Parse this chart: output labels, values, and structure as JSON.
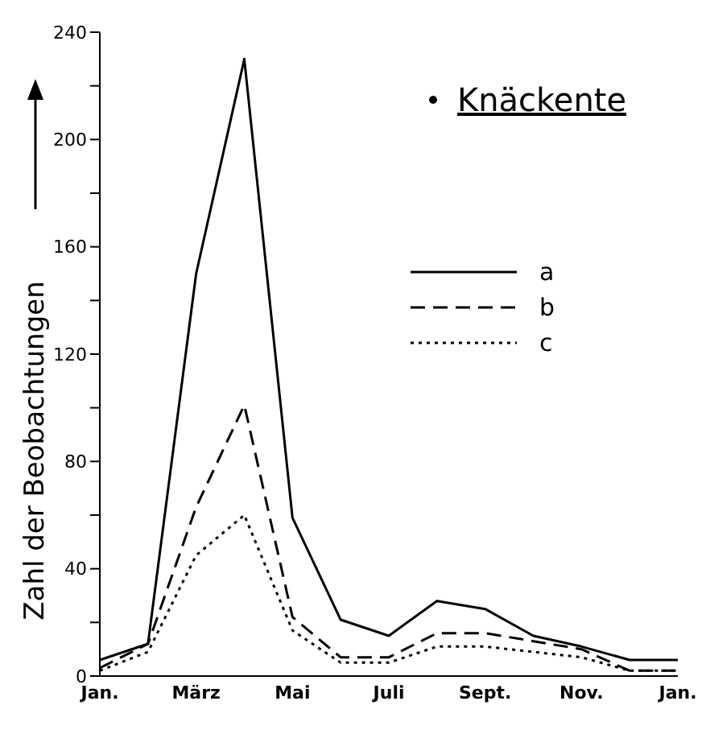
{
  "chart_data": {
    "type": "line",
    "title": "Knäckente",
    "ylabel": "Zahl der Beobachtungen",
    "categories": [
      "Jan.",
      null,
      "März",
      null,
      "Mai",
      null,
      "Juli",
      null,
      "Sept.",
      null,
      "Nov.",
      null,
      "Jan."
    ],
    "series": [
      {
        "name": "a",
        "color": "#000000",
        "line_style": "solid",
        "values": [
          6,
          12,
          150,
          230,
          59,
          21,
          15,
          28,
          25,
          15,
          11,
          6,
          6
        ]
      },
      {
        "name": "b",
        "color": "#000000",
        "line_style": "dashed",
        "values": [
          3,
          12,
          63,
          101,
          22,
          7,
          7,
          16,
          16,
          13,
          10,
          2,
          2
        ]
      },
      {
        "name": "c",
        "color": "#000000",
        "line_style": "dotted",
        "values": [
          2,
          9,
          45,
          60,
          17,
          5,
          5,
          11,
          11,
          9,
          7,
          2,
          2
        ]
      }
    ],
    "ylim": [
      0,
      240
    ],
    "yticks": [
      0,
      {
        "value": 20,
        "label": null
      },
      40,
      {
        "value": 60,
        "label": null
      },
      80,
      {
        "value": 100,
        "label": null
      },
      120,
      {
        "value": 140,
        "label": null
      },
      160,
      {
        "value": 180,
        "label": null
      },
      200,
      {
        "value": 220,
        "label": null
      },
      240
    ],
    "grid": false,
    "legend": "right",
    "marker": "none"
  }
}
